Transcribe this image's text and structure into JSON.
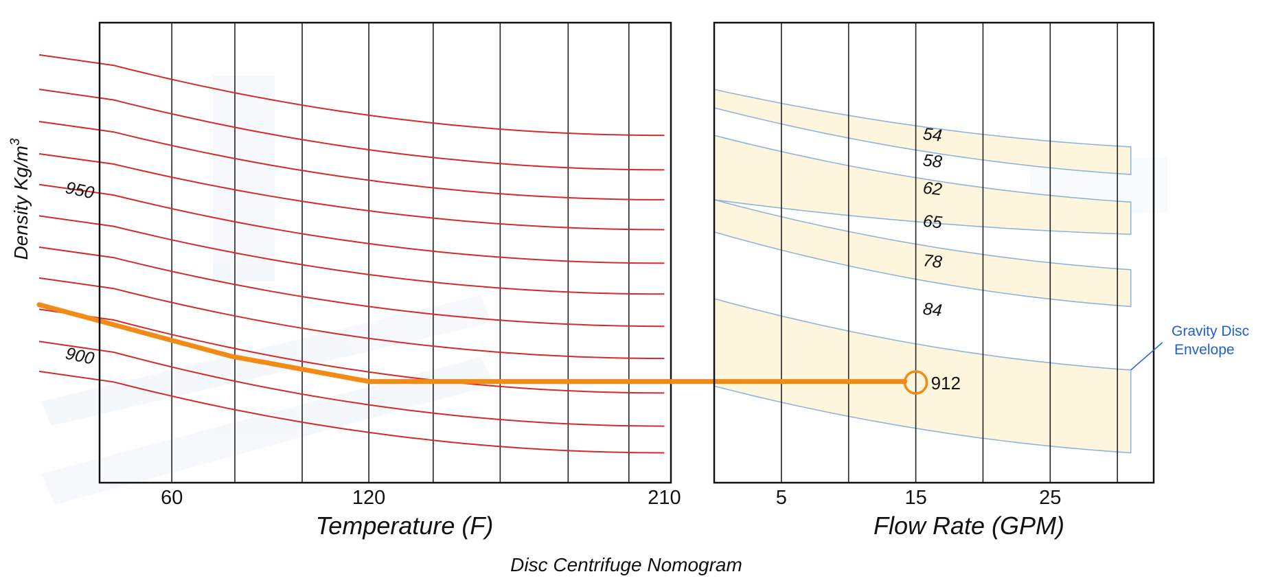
{
  "chart_data": [
    {
      "type": "line",
      "xlabel": "Temperature (F)",
      "ylabel_main": "Density Kg/m",
      "ylabel_sup": "3",
      "xlim": [
        38,
        212
      ],
      "ylim": [
        0,
        100
      ],
      "ticks": [
        {
          "value": 60,
          "label": "60",
          "highlight": false
        },
        {
          "value": 120,
          "label": "120",
          "highlight": true
        },
        {
          "value": 210,
          "label": "210",
          "highlight": false
        }
      ],
      "gridlines": [
        60,
        79.2,
        99.7,
        120,
        139.6,
        160,
        180.7,
        199.2
      ],
      "density_curves": [
        {
          "start": 91.5,
          "end": 75.5
        },
        {
          "start": 84,
          "end": 68
        },
        {
          "start": 77,
          "end": 61.5
        },
        {
          "start": 70,
          "end": 55
        },
        {
          "start": 63.3,
          "end": 47.7
        },
        {
          "start": 56.5,
          "end": 41
        },
        {
          "start": 49.7,
          "end": 34
        },
        {
          "start": 43,
          "end": 27
        },
        {
          "start": 36.2,
          "end": 19.5
        },
        {
          "start": 29.2,
          "end": 12.3
        },
        {
          "start": 22.7,
          "end": 6.5
        }
      ],
      "curve_labels": [
        {
          "text": "950",
          "x": 42,
          "y": 63
        },
        {
          "text": "900",
          "x": 42,
          "y": 27
        }
      ],
      "highlight_path": [
        [
          38,
          37.5
        ],
        [
          78,
          27.5
        ],
        [
          120,
          22
        ],
        [
          212,
          22
        ]
      ]
    },
    {
      "type": "line",
      "xlabel": "Flow Rate (GPM)",
      "xlim": [
        0,
        32.7
      ],
      "ylim": [
        0,
        100
      ],
      "ticks": [
        {
          "value": 5,
          "label": "5",
          "highlight": false
        },
        {
          "value": 15,
          "label": "15",
          "highlight": true
        },
        {
          "value": 25,
          "label": "25",
          "highlight": false
        }
      ],
      "gridlines": [
        5,
        10,
        15,
        20,
        25,
        30
      ],
      "envelope_end_x": 31,
      "bands": [
        {
          "top_start": 85.5,
          "top_end": 73,
          "bottom_start": 81.5,
          "bottom_end": 67
        },
        {
          "top_start": 75.5,
          "top_end": 61,
          "bottom_start": 61.5,
          "bottom_end": 54
        },
        {
          "top_start": 61.5,
          "top_end": 46.3,
          "bottom_start": 54.5,
          "bottom_end": 38.3
        },
        {
          "top_start": 40,
          "top_end": 24.5,
          "bottom_start": 21,
          "bottom_end": 6.5
        }
      ],
      "disc_labels": [
        {
          "text": "54",
          "x": 16.2,
          "y": 74.4
        },
        {
          "text": "58",
          "x": 16.2,
          "y": 68.7
        },
        {
          "text": "62",
          "x": 16.2,
          "y": 62.7
        },
        {
          "text": "65",
          "x": 16.2,
          "y": 55.5
        },
        {
          "text": "78",
          "x": 16.2,
          "y": 46.9
        },
        {
          "text": "84",
          "x": 16.2,
          "y": 36.4
        }
      ],
      "result_point": {
        "x": 15,
        "y": 21.8,
        "label": "912"
      },
      "highlight_path": [
        [
          0,
          22
        ],
        [
          15,
          22
        ]
      ],
      "envelope_label": [
        "Gravity Disc",
        "Envelope"
      ]
    }
  ],
  "caption": "Disc Centrifuge Nomogram",
  "colors": {
    "density_curve": "#d42a2a",
    "highlight": "#f28a16",
    "envelope_line": "#8fb3dd",
    "envelope_fill": "#fdf6dc",
    "envelope_text": "#1f5fd1",
    "frame": "#111111",
    "watermark": "#eef3f8"
  }
}
